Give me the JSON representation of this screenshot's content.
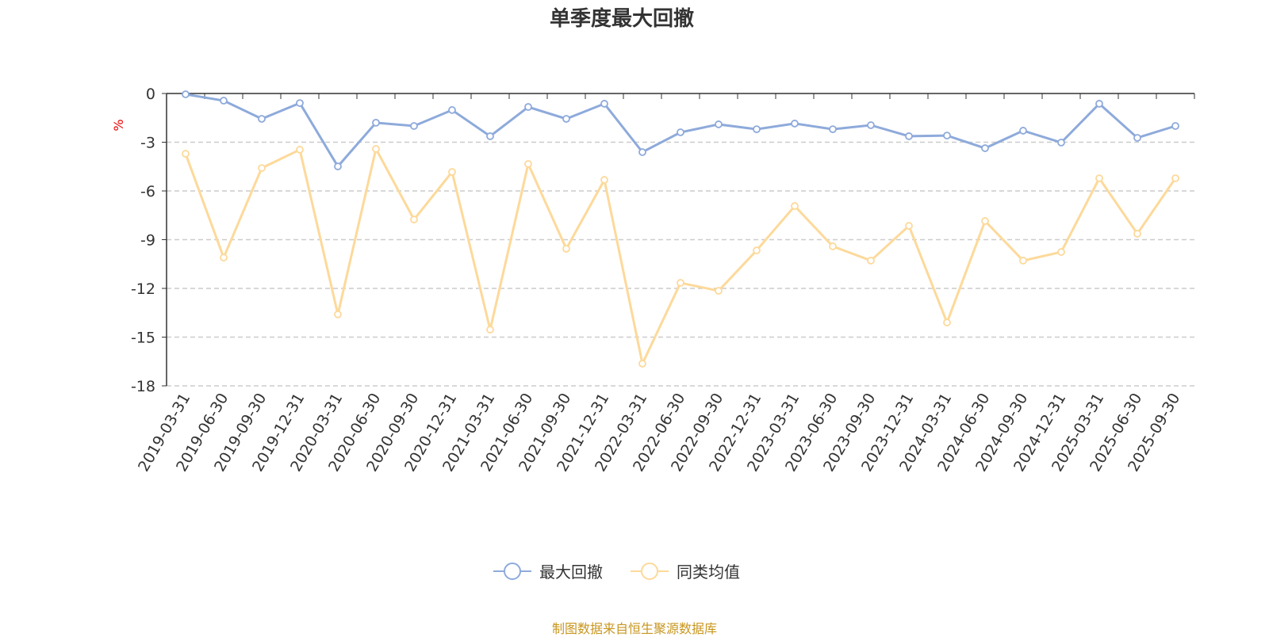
{
  "chart_data": {
    "type": "line",
    "title": "单季度最大回撤",
    "ylabel": "%",
    "xlabel": "",
    "ylim": [
      -18,
      0
    ],
    "yticks": [
      0,
      -3,
      -6,
      -9,
      -12,
      -15,
      -18
    ],
    "grid": true,
    "legend_position": "bottom",
    "categories": [
      "2019-03-31",
      "2019-06-30",
      "2019-09-30",
      "2019-12-31",
      "2020-03-31",
      "2020-06-30",
      "2020-09-30",
      "2020-12-31",
      "2021-03-31",
      "2021-06-30",
      "2021-09-30",
      "2021-12-31",
      "2022-03-31",
      "2022-06-30",
      "2022-09-30",
      "2022-12-31",
      "2023-03-31",
      "2023-06-30",
      "2023-09-30",
      "2023-12-31",
      "2024-03-31",
      "2024-06-30",
      "2024-09-30",
      "2024-12-31",
      "2025-03-31",
      "2025-06-30",
      "2025-09-30"
    ],
    "series": [
      {
        "name": "最大回撤",
        "color": "#8eaadb",
        "values": [
          -0.05,
          -0.44,
          -1.56,
          -0.59,
          -4.49,
          -1.8,
          -2.0,
          -1.02,
          -2.63,
          -0.83,
          -1.56,
          -0.63,
          -3.61,
          -2.39,
          -1.9,
          -2.2,
          -1.85,
          -2.2,
          -1.95,
          -2.63,
          -2.59,
          -3.37,
          -2.29,
          -3.02,
          -0.63,
          -2.73,
          -2.0
        ]
      },
      {
        "name": "同类均值",
        "color": "#fdd99a",
        "values": [
          -3.71,
          -10.1,
          -4.59,
          -3.46,
          -13.6,
          -3.41,
          -7.76,
          -4.83,
          -14.54,
          -4.34,
          -9.56,
          -5.32,
          -16.63,
          -11.66,
          -12.15,
          -9.66,
          -6.93,
          -9.41,
          -10.29,
          -8.15,
          -14.1,
          -7.85,
          -10.29,
          -9.76,
          -5.22,
          -8.63,
          -5.22
        ]
      }
    ]
  },
  "source": "制图数据来自恒生聚源数据库"
}
